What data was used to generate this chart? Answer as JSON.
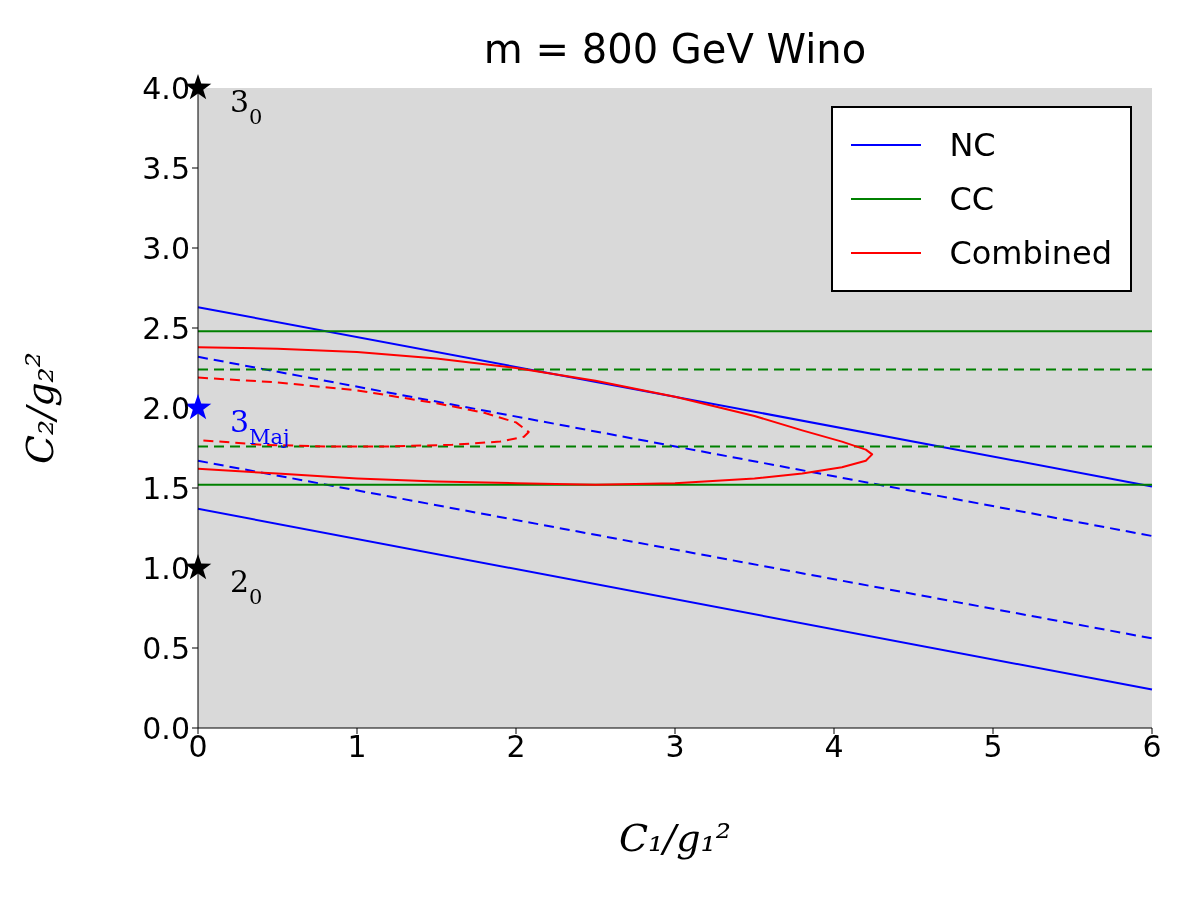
{
  "chart_data": {
    "type": "line",
    "title": "m = 800 GeV Wino",
    "xlabel": "C₁/g₁²",
    "ylabel": "C₂/g₂²",
    "xlim": [
      0,
      6
    ],
    "ylim": [
      0,
      4
    ],
    "xticks": [
      0,
      1,
      2,
      3,
      4,
      5,
      6
    ],
    "yticks": [
      {
        "value": 0,
        "label": "0.0"
      },
      {
        "value": 0.5,
        "label": "0.5"
      },
      {
        "value": 1,
        "label": "1.0"
      },
      {
        "value": 1.5,
        "label": "1.5"
      },
      {
        "value": 2,
        "label": "2.0"
      },
      {
        "value": 2.5,
        "label": "2.5"
      },
      {
        "value": 3,
        "label": "3.0"
      },
      {
        "value": 3.5,
        "label": "3.5"
      },
      {
        "value": 4,
        "label": "4.0"
      }
    ],
    "grid": false,
    "legend": "top right",
    "series": [
      {
        "name": "NC",
        "color": "#0000ff",
        "line_style": "solid",
        "marker": "none",
        "x": [
          0,
          6
        ],
        "values": [
          2.63,
          1.51
        ]
      },
      {
        "color": "#0000ff",
        "line_style": "solid",
        "marker": "none",
        "x": [
          0,
          6
        ],
        "values": [
          1.37,
          0.24
        ]
      },
      {
        "color": "#0000ff",
        "line_style": "dashed",
        "marker": "none",
        "x": [
          0,
          6
        ],
        "values": [
          2.32,
          1.2
        ]
      },
      {
        "color": "#0000ff",
        "line_style": "dashed",
        "marker": "none",
        "x": [
          0,
          6
        ],
        "values": [
          1.67,
          0.56
        ]
      },
      {
        "name": "CC",
        "color": "#008000",
        "line_style": "solid",
        "marker": "none",
        "x": [
          0,
          6
        ],
        "values": [
          2.48,
          2.48
        ]
      },
      {
        "color": "#008000",
        "line_style": "solid",
        "marker": "none",
        "x": [
          0,
          6
        ],
        "values": [
          1.52,
          1.52
        ]
      },
      {
        "color": "#008000",
        "line_style": "dashed",
        "marker": "none",
        "x": [
          0,
          6
        ],
        "values": [
          2.24,
          2.24
        ]
      },
      {
        "color": "#008000",
        "line_style": "dashed",
        "marker": "none",
        "x": [
          0,
          6
        ],
        "values": [
          1.76,
          1.76
        ]
      },
      {
        "name": "Combined",
        "color": "#ff0000",
        "line_style": "solid",
        "marker": "none",
        "x": [
          0,
          0.5,
          1,
          1.5,
          2,
          2.5,
          3,
          3.5,
          3.8,
          4.05,
          4.2,
          4.24,
          4.2,
          4.05,
          3.8,
          3.5,
          3,
          2.5,
          2,
          1.5,
          1,
          0.5,
          0
        ],
        "values": [
          2.38,
          2.37,
          2.35,
          2.31,
          2.25,
          2.17,
          2.07,
          1.95,
          1.86,
          1.79,
          1.74,
          1.71,
          1.67,
          1.63,
          1.59,
          1.56,
          1.53,
          1.52,
          1.53,
          1.54,
          1.56,
          1.59,
          1.62
        ]
      },
      {
        "color": "#ff0000",
        "line_style": "dashed",
        "marker": "none",
        "x": [
          0,
          0.5,
          1,
          1.5,
          1.8,
          2,
          2.08,
          2.05,
          1.9,
          1.6,
          1.2,
          0.8,
          0.4,
          0
        ],
        "values": [
          2.19,
          2.16,
          2.11,
          2.03,
          1.97,
          1.91,
          1.85,
          1.82,
          1.79,
          1.77,
          1.76,
          1.76,
          1.77,
          1.8
        ]
      },
      {
        "type": "scatter",
        "marker": "star",
        "x": [
          0,
          0,
          0
        ],
        "values": [
          4,
          2,
          1
        ],
        "colors": [
          "#000000",
          "#0000ff",
          "#000000"
        ]
      }
    ],
    "annotations": [
      "3$_{0}$",
      "3$_{Maj}$",
      "2$_{0}$"
    ]
  }
}
